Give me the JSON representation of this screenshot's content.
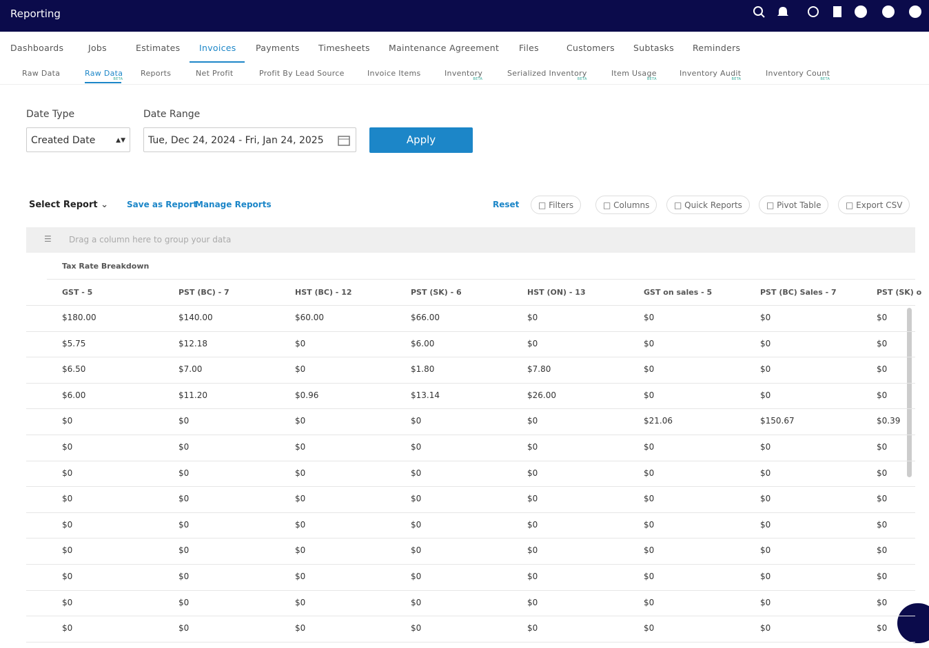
{
  "header": {
    "title": "Reporting"
  },
  "nav": {
    "tabs": [
      "Dashboards",
      "Jobs",
      "Estimates",
      "Invoices",
      "Payments",
      "Timesheets",
      "Maintenance Agreement",
      "Files",
      "Customers",
      "Subtasks",
      "Reminders"
    ],
    "active": 3
  },
  "subnav": {
    "tabs": [
      "Raw Data",
      "Raw Data",
      "Reports",
      "Net Profit",
      "Profit By Lead Source",
      "Invoice Items",
      "Inventory",
      "Serialized Inventory",
      "Item Usage",
      "Inventory Audit",
      "Inventory Count"
    ],
    "active": 1,
    "badge": "BETA",
    "badged": [
      1,
      6,
      7,
      8,
      9,
      10
    ]
  },
  "filters": {
    "date_type_label": "Date Type",
    "date_type_value": "Created Date",
    "date_range_label": "Date Range",
    "date_range_value": "Tue, Dec 24, 2024 - Fri, Jan 24, 2025",
    "apply": "Apply"
  },
  "toolbar": {
    "select_report": "Select Report",
    "save": "Save as Report",
    "manage": "Manage Reports",
    "reset": "Reset",
    "buttons": [
      "Filters",
      "Columns",
      "Quick Reports",
      "Pivot Table",
      "Export CSV"
    ]
  },
  "grid": {
    "group_hint": "Drag a column here to group your data",
    "group_header": "Tax Rate Breakdown",
    "columns": [
      "GST - 5",
      "PST (BC) - 7",
      "HST (BC) - 12",
      "PST (SK) - 6",
      "HST (ON) - 13",
      "GST on sales - 5",
      "PST (BC) Sales - 7",
      "PST (SK) o"
    ],
    "rows": [
      [
        "$180.00",
        "$140.00",
        "$60.00",
        "$66.00",
        "$0",
        "$0",
        "$0",
        "$0"
      ],
      [
        "$5.75",
        "$12.18",
        "$0",
        "$6.00",
        "$0",
        "$0",
        "$0",
        "$0"
      ],
      [
        "$6.50",
        "$7.00",
        "$0",
        "$1.80",
        "$7.80",
        "$0",
        "$0",
        "$0"
      ],
      [
        "$6.00",
        "$11.20",
        "$0.96",
        "$13.14",
        "$26.00",
        "$0",
        "$0",
        "$0"
      ],
      [
        "$0",
        "$0",
        "$0",
        "$0",
        "$0",
        "$21.06",
        "$150.67",
        "$0.39"
      ],
      [
        "$0",
        "$0",
        "$0",
        "$0",
        "$0",
        "$0",
        "$0",
        "$0"
      ],
      [
        "$0",
        "$0",
        "$0",
        "$0",
        "$0",
        "$0",
        "$0",
        "$0"
      ],
      [
        "$0",
        "$0",
        "$0",
        "$0",
        "$0",
        "$0",
        "$0",
        "$0"
      ],
      [
        "$0",
        "$0",
        "$0",
        "$0",
        "$0",
        "$0",
        "$0",
        "$0"
      ],
      [
        "$0",
        "$0",
        "$0",
        "$0",
        "$0",
        "$0",
        "$0",
        "$0"
      ],
      [
        "$0",
        "$0",
        "$0",
        "$0",
        "$0",
        "$0",
        "$0",
        "$0"
      ],
      [
        "$0",
        "$0",
        "$0",
        "$0",
        "$0",
        "$0",
        "$0",
        "$0"
      ],
      [
        "$0",
        "$0",
        "$0",
        "$0",
        "$0",
        "$0",
        "$0",
        "$0"
      ]
    ]
  }
}
